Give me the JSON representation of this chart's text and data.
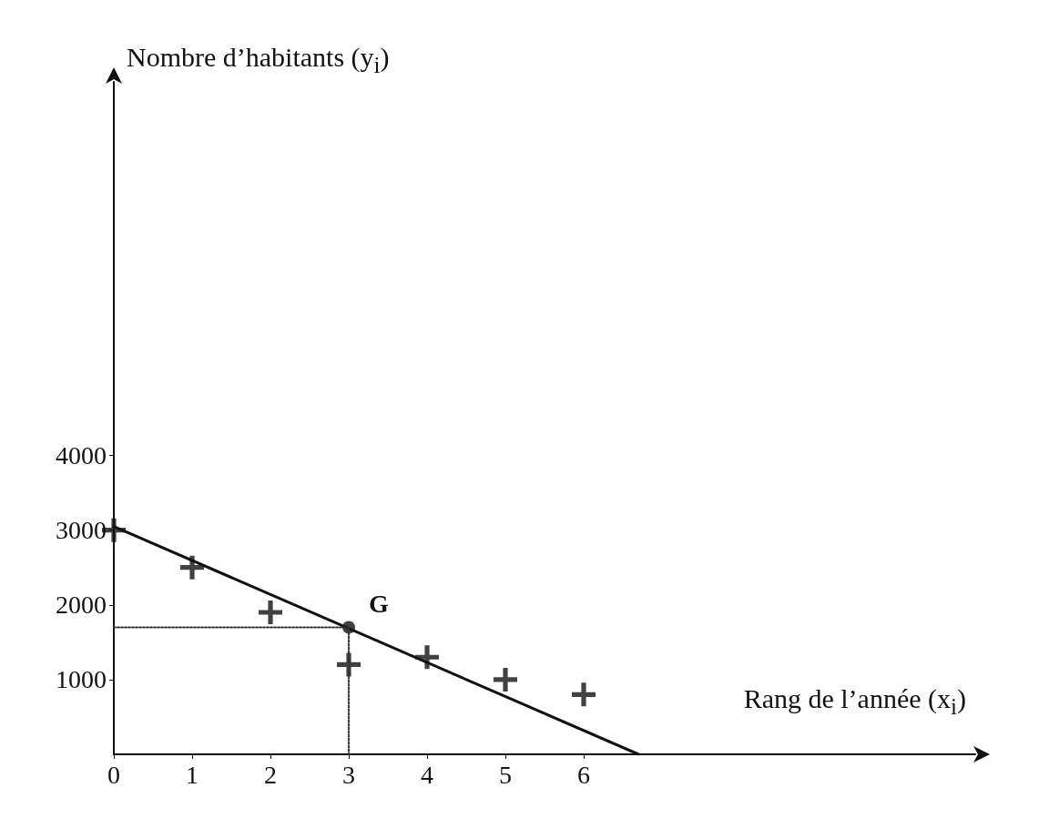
{
  "chart_data": {
    "type": "scatter",
    "xlabel": "Rang de l’année (x$_{i}$)",
    "ylabel": "Nombre d’habitants (y$_{i}$)",
    "x": [
      0,
      1,
      2,
      3,
      4,
      5,
      6
    ],
    "series": [
      {
        "values": [
          3000,
          2500,
          1900,
          1200,
          1300,
          1000,
          800
        ],
        "color": "#111111",
        "marker": "cross"
      },
      {
        "type": "line",
        "x": [
          0,
          6.7
        ],
        "values": [
          3050,
          0
        ],
        "color": "#111111",
        "line_style": "solid",
        "marker": "none"
      },
      {
        "type": "line",
        "x": [
          0,
          3,
          3
        ],
        "values": [
          1700,
          1700,
          0
        ],
        "color": "#333333",
        "line_style": "dotted",
        "marker": "none"
      },
      {
        "type": "scatter",
        "x": [
          3
        ],
        "values": [
          1700
        ],
        "color": "#111111",
        "marker": "circle"
      }
    ],
    "annotations": [
      {
        "text": "G",
        "x": 3,
        "y": 1700
      }
    ],
    "xlim": [
      0,
      11
    ],
    "ylim": [
      0,
      9000
    ],
    "xticks": [
      0,
      1,
      2,
      3,
      4,
      5,
      6
    ],
    "yticks": [
      1000,
      2000,
      3000,
      4000
    ],
    "grid": false
  }
}
